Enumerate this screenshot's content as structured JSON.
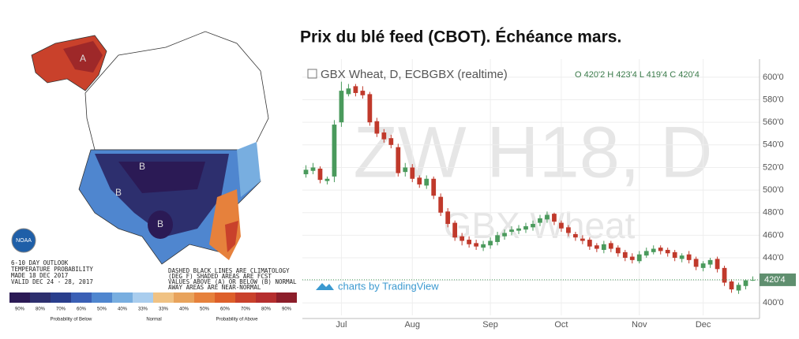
{
  "title": "Prix du blé feed (CBOT). Échéance mars.",
  "map": {
    "lines": [
      "6-10 DAY OUTLOOK",
      "TEMPERATURE PROBABILITY",
      "MADE 18 DEC 2017",
      "VALID DEC 24 - 28, 2017"
    ],
    "notes": [
      "DASHED BLACK LINES ARE CLIMATOLOGY",
      "(DEG F) SHADED AREAS ARE FCST",
      "VALUES ABOVE (A) OR BELOW (B) NORMAL",
      "AWAY AREAS ARE NEAR-NORMAL"
    ],
    "logo": "NOAA",
    "region_labels": [
      "A",
      "B",
      "B",
      "B"
    ],
    "legend": [
      {
        "label": "90%",
        "color": "#2b1a55"
      },
      {
        "label": "80%",
        "color": "#2d2f6e"
      },
      {
        "label": "70%",
        "color": "#293e8c"
      },
      {
        "label": "60%",
        "color": "#3a5fb5"
      },
      {
        "label": "50%",
        "color": "#4f86cf"
      },
      {
        "label": "40%",
        "color": "#78aee0"
      },
      {
        "label": "33%",
        "color": "#a9cdee"
      },
      {
        "label": "33%",
        "color": "#f0c283"
      },
      {
        "label": "40%",
        "color": "#e8a35c"
      },
      {
        "label": "50%",
        "color": "#e6813c"
      },
      {
        "label": "60%",
        "color": "#dd5f2a"
      },
      {
        "label": "70%",
        "color": "#c9412b"
      },
      {
        "label": "80%",
        "color": "#b52e2e"
      },
      {
        "label": "90%",
        "color": "#8c1e2a"
      }
    ],
    "legend_titles": [
      "Probability of Below",
      "Normal",
      "Probability of Above"
    ]
  },
  "chart_data": {
    "type": "candlestick",
    "header": "GBX Wheat, D, ECBGBX (realtime)",
    "ohlc_text": "O 420'2 H 423'4 L 419'4 C 420'4",
    "watermark": "ZW H18, D",
    "watermark_sub": "GBX Wheat",
    "branding": "charts by TradingView",
    "categories": [
      null,
      null,
      null,
      null,
      null,
      "Jul",
      null,
      null,
      null,
      null,
      null,
      null,
      null,
      null,
      null,
      "Aug",
      null,
      null,
      null,
      null,
      null,
      null,
      null,
      null,
      null,
      null,
      "Sep",
      null,
      null,
      null,
      null,
      null,
      null,
      null,
      null,
      null,
      "Oct",
      null,
      null,
      null,
      null,
      null,
      null,
      null,
      null,
      null,
      null,
      "Nov",
      null,
      null,
      null,
      null,
      null,
      null,
      null,
      null,
      "Dec",
      null,
      null,
      null,
      null,
      null,
      null,
      null
    ],
    "open": [
      514,
      517,
      519,
      508,
      512,
      560,
      585,
      592,
      588,
      585,
      561,
      551,
      546,
      538,
      516,
      520,
      511,
      504,
      510,
      494,
      481,
      471,
      459,
      456,
      453,
      449,
      451,
      454,
      459,
      463,
      464,
      465,
      467,
      471,
      474,
      479,
      471,
      467,
      461,
      457,
      456,
      451,
      447,
      453,
      449,
      445,
      441,
      437,
      442,
      445,
      449,
      447,
      445,
      439,
      443,
      439,
      431,
      434,
      439,
      431,
      419,
      411,
      415,
      420.25
    ],
    "high": [
      522,
      524,
      521,
      512,
      562,
      596,
      594,
      594,
      592,
      587,
      564,
      554,
      549,
      541,
      524,
      523,
      513,
      513,
      512,
      497,
      484,
      473,
      462,
      459,
      456,
      455,
      458,
      463,
      465,
      468,
      469,
      471,
      473,
      478,
      481,
      480,
      473,
      469,
      463,
      460,
      458,
      453,
      455,
      455,
      451,
      447,
      444,
      446,
      449,
      451,
      451,
      449,
      447,
      444,
      446,
      441,
      437,
      440,
      441,
      433,
      421,
      418,
      421,
      423.5
    ],
    "low": [
      511,
      514,
      506,
      505,
      507,
      556,
      583,
      583,
      581,
      557,
      547,
      542,
      537,
      512,
      512,
      507,
      502,
      501,
      492,
      477,
      467,
      455,
      451,
      449,
      447,
      446,
      448,
      451,
      456,
      460,
      461,
      462,
      464,
      468,
      471,
      469,
      463,
      459,
      455,
      452,
      447,
      445,
      444,
      445,
      441,
      437,
      435,
      435,
      440,
      443,
      443,
      441,
      437,
      436,
      435,
      429,
      428,
      431,
      427,
      415,
      409,
      408,
      412,
      419.5
    ],
    "close": [
      518,
      520,
      509,
      510,
      558,
      588,
      590,
      586,
      584,
      560,
      550,
      545,
      540,
      515,
      520,
      510,
      505,
      510,
      495,
      480,
      470,
      458,
      455,
      452,
      450,
      452,
      455,
      460,
      462,
      465,
      466,
      468,
      470,
      475,
      478,
      472,
      466,
      462,
      458,
      455,
      450,
      448,
      452,
      448,
      444,
      440,
      438,
      443,
      446,
      448,
      446,
      444,
      440,
      442,
      438,
      432,
      435,
      438,
      430,
      418,
      412,
      416,
      420,
      420.5
    ],
    "up_color": "#4a9a5c",
    "down_color": "#c0392b",
    "ylim": [
      389,
      616
    ],
    "yticks": [
      {
        "value": 400,
        "label": "400'0"
      },
      {
        "value": 420,
        "label": "420'0"
      },
      {
        "value": 440,
        "label": "440'0"
      },
      {
        "value": 460,
        "label": "460'0"
      },
      {
        "value": 480,
        "label": "480'0"
      },
      {
        "value": 500,
        "label": "500'0"
      },
      {
        "value": 520,
        "label": "520'0"
      },
      {
        "value": 540,
        "label": "540'0"
      },
      {
        "value": 560,
        "label": "560'0"
      },
      {
        "value": 580,
        "label": "580'0"
      },
      {
        "value": 600,
        "label": "600'0"
      }
    ],
    "last_price": {
      "value": 420.5,
      "label": "420'4"
    },
    "grid": true
  }
}
